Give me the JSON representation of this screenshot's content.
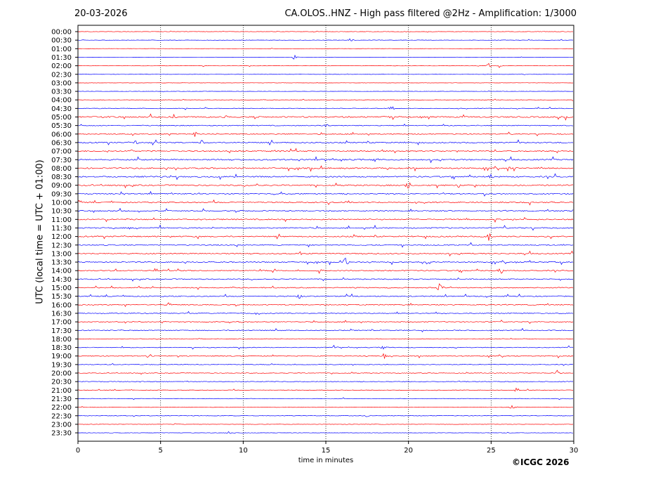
{
  "header": {
    "date": "20-03-2026",
    "title": "CA.OLOS..HNZ - High pass filtered @2Hz - Amplification: 1/3000"
  },
  "footer": {
    "copyright": "©ICGC 2026"
  },
  "colors": {
    "trace_a": "#ff0000",
    "trace_b": "#0000ff",
    "grid": "#000000"
  },
  "chart_data": {
    "type": "line",
    "title": "CA.OLOS..HNZ - High pass filtered @2Hz - Amplification: 1/3000",
    "xlabel": "time in minutes",
    "ylabel": "UTC (local time = UTC + 01:00)",
    "xlim": [
      0,
      30
    ],
    "xticks": [
      0,
      5,
      10,
      15,
      20,
      25,
      30
    ],
    "grid": "vertical dotted lines every 5 minutes",
    "ytick_labels": [
      "00:00",
      "00:30",
      "01:00",
      "01:30",
      "02:00",
      "02:30",
      "03:00",
      "03:30",
      "04:00",
      "04:30",
      "05:00",
      "05:30",
      "06:00",
      "06:30",
      "07:00",
      "07:30",
      "08:00",
      "08:30",
      "09:00",
      "09:30",
      "10:00",
      "10:30",
      "11:00",
      "11:30",
      "12:00",
      "12:30",
      "13:00",
      "13:30",
      "14:00",
      "14:30",
      "15:00",
      "15:30",
      "16:00",
      "16:30",
      "17:00",
      "17:30",
      "18:00",
      "18:30",
      "19:00",
      "19:30",
      "20:00",
      "20:30",
      "21:00",
      "21:30",
      "22:00",
      "22:30",
      "23:00",
      "23:30"
    ],
    "trace_colors_alternate": [
      "#ff0000",
      "#0000ff"
    ],
    "noise_level": [
      0.4,
      0.35,
      0.3,
      0.3,
      0.35,
      0.3,
      0.3,
      0.3,
      0.4,
      0.6,
      1.2,
      0.8,
      0.9,
      1.1,
      1.1,
      1.2,
      1.2,
      1.2,
      1.2,
      1.0,
      1.1,
      1.0,
      1.1,
      1.1,
      1.1,
      1.0,
      1.0,
      1.0,
      1.0,
      0.9,
      0.9,
      0.9,
      0.9,
      0.8,
      0.8,
      0.8,
      0.6,
      0.7,
      0.8,
      0.6,
      0.6,
      0.6,
      0.5,
      0.5,
      0.5,
      0.5,
      0.4,
      0.4
    ],
    "events": [
      {
        "trace": "00:00",
        "minute": 20.0,
        "amplitude": 1.5
      },
      {
        "trace": "00:30",
        "minute": 16.5,
        "amplitude": 4
      },
      {
        "trace": "01:30",
        "minute": 13.1,
        "amplitude": 4
      },
      {
        "trace": "02:00",
        "minute": 24.9,
        "amplitude": 5
      },
      {
        "trace": "02:00",
        "minute": 25.5,
        "amplitude": 3
      },
      {
        "trace": "04:30",
        "minute": 19.0,
        "amplitude": 4
      },
      {
        "trace": "04:30",
        "minute": 25.5,
        "amplitude": 3
      },
      {
        "trace": "05:00",
        "minute": 1.5,
        "amplitude": 3
      },
      {
        "trace": "05:00",
        "minute": 5.8,
        "amplitude": 4
      },
      {
        "trace": "05:00",
        "minute": 9.0,
        "amplitude": 3
      },
      {
        "trace": "05:00",
        "minute": 18.5,
        "amplitude": 3
      },
      {
        "trace": "05:30",
        "minute": 15.0,
        "amplitude": 4
      },
      {
        "trace": "06:00",
        "minute": 7.1,
        "amplitude": 4
      },
      {
        "trace": "06:30",
        "minute": 3.5,
        "amplitude": 4
      },
      {
        "trace": "06:30",
        "minute": 7.5,
        "amplitude": 5
      },
      {
        "trace": "07:00",
        "minute": 3.2,
        "amplitude": 3
      },
      {
        "trace": "07:00",
        "minute": 12.0,
        "amplitude": 3
      },
      {
        "trace": "07:00",
        "minute": 29.0,
        "amplitude": 3
      },
      {
        "trace": "07:30",
        "minute": 18.0,
        "amplitude": 4
      },
      {
        "trace": "08:00",
        "minute": 26.0,
        "amplitude": 4
      },
      {
        "trace": "08:30",
        "minute": 25.0,
        "amplitude": 4
      },
      {
        "trace": "09:00",
        "minute": 20.0,
        "amplitude": 6
      },
      {
        "trace": "10:00",
        "minute": 0.1,
        "amplitude": 5
      },
      {
        "trace": "10:30",
        "minute": 30.0,
        "amplitude": 3
      },
      {
        "trace": "12:00",
        "minute": 24.9,
        "amplitude": 8
      },
      {
        "trace": "13:00",
        "minute": 13.5,
        "amplitude": 4
      },
      {
        "trace": "13:30",
        "minute": 16.2,
        "amplitude": 9
      },
      {
        "trace": "13:30",
        "minute": 21.2,
        "amplitude": 4
      },
      {
        "trace": "14:00",
        "minute": 14.6,
        "amplitude": 4
      },
      {
        "trace": "14:00",
        "minute": 25.6,
        "amplitude": 6
      },
      {
        "trace": "15:00",
        "minute": 21.9,
        "amplitude": 10
      },
      {
        "trace": "15:30",
        "minute": 13.4,
        "amplitude": 4
      },
      {
        "trace": "16:00",
        "minute": 5.5,
        "amplitude": 4
      },
      {
        "trace": "17:00",
        "minute": 9.8,
        "amplitude": 3
      },
      {
        "trace": "18:30",
        "minute": 15.5,
        "amplitude": 4
      },
      {
        "trace": "18:30",
        "minute": 18.5,
        "amplitude": 4
      },
      {
        "trace": "19:00",
        "minute": 4.3,
        "amplitude": 4
      },
      {
        "trace": "19:00",
        "minute": 18.5,
        "amplitude": 5
      },
      {
        "trace": "20:00",
        "minute": 29.0,
        "amplitude": 4
      },
      {
        "trace": "21:00",
        "minute": 26.5,
        "amplitude": 3
      },
      {
        "trace": "22:00",
        "minute": 26.3,
        "amplitude": 5
      },
      {
        "trace": "22:30",
        "minute": 17.5,
        "amplitude": 3
      },
      {
        "trace": "23:00",
        "minute": 6.0,
        "amplitude": 3
      },
      {
        "trace": "23:30",
        "minute": 9.2,
        "amplitude": 4
      }
    ]
  }
}
